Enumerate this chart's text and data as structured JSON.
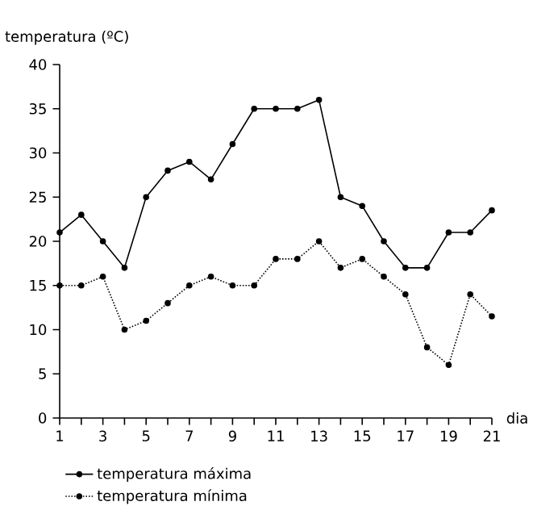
{
  "chart_data": {
    "type": "line",
    "ylabel": "temperatura (ºC)",
    "xlabel": "dia",
    "x": [
      1,
      2,
      3,
      4,
      5,
      6,
      7,
      8,
      9,
      10,
      11,
      12,
      13,
      14,
      15,
      16,
      17,
      18,
      19,
      20,
      21
    ],
    "series": [
      {
        "name": "temperatura máxima",
        "color": "#000000",
        "line_style": "solid",
        "values": [
          21,
          23,
          20,
          17,
          25,
          28,
          29,
          27,
          31,
          35,
          35,
          35,
          36,
          25,
          24,
          20,
          17,
          17,
          21,
          21,
          23.5
        ]
      },
      {
        "name": "temperatura mínima",
        "color": "#000000",
        "line_style": "dotted",
        "values": [
          15,
          15,
          16,
          10,
          11,
          13,
          15,
          16,
          15,
          15,
          18,
          18,
          20,
          17,
          18,
          16,
          14,
          8,
          6,
          14,
          11.5
        ]
      }
    ],
    "xlim": [
      1,
      21
    ],
    "ylim": [
      0,
      40
    ],
    "xticks": [
      1,
      {
        "value": 2,
        "label": null
      },
      3,
      {
        "value": 4,
        "label": null
      },
      5,
      {
        "value": 6,
        "label": null
      },
      7,
      {
        "value": 8,
        "label": null
      },
      9,
      {
        "value": 10,
        "label": null
      },
      11,
      {
        "value": 12,
        "label": null
      },
      13,
      {
        "value": 14,
        "label": null
      },
      15,
      {
        "value": 16,
        "label": null
      },
      17,
      {
        "value": 18,
        "label": null
      },
      19,
      {
        "value": 20,
        "label": null
      },
      21
    ],
    "yticks": [
      0,
      5,
      10,
      15,
      20,
      25,
      30,
      35,
      40
    ],
    "marker": "circle",
    "legend": "bottom",
    "grid": false
  }
}
